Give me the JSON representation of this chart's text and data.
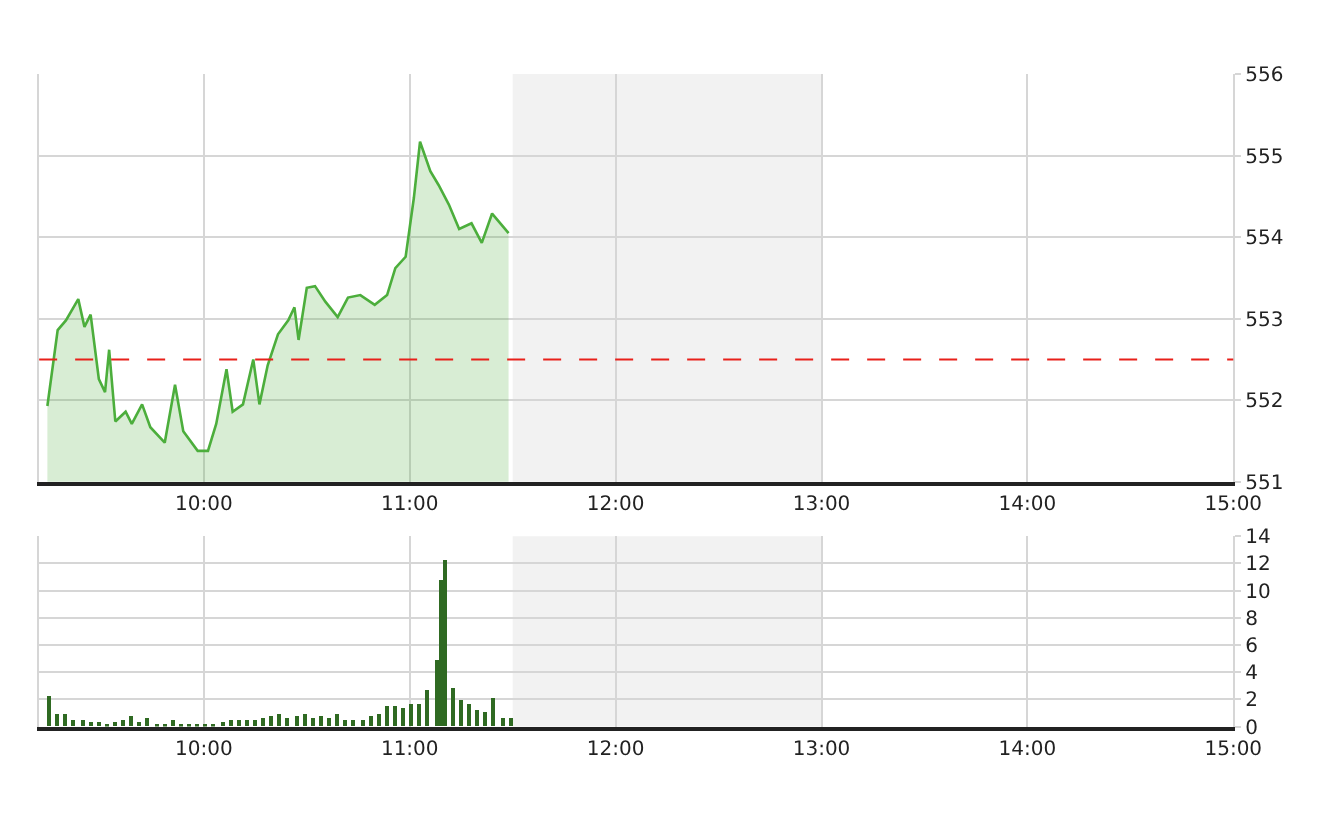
{
  "chart_data": [
    {
      "type": "area",
      "x": [
        9.24,
        9.29,
        9.33,
        9.39,
        9.42,
        9.45,
        9.49,
        9.52,
        9.54,
        9.57,
        9.62,
        9.65,
        9.7,
        9.74,
        9.81,
        9.86,
        9.9,
        9.97,
        10.02,
        10.06,
        10.11,
        10.14,
        10.19,
        10.24,
        10.27,
        10.31,
        10.36,
        10.41,
        10.44,
        10.46,
        10.5,
        10.54,
        10.59,
        10.65,
        10.7,
        10.76,
        10.83,
        10.89,
        10.93,
        10.98,
        11.02,
        11.05,
        11.1,
        11.14,
        11.19,
        11.24,
        11.3,
        11.35,
        11.4,
        11.48
      ],
      "series": [
        {
          "color": "#4cae3c",
          "values": [
            551.93,
            552.86,
            552.98,
            553.24,
            552.9,
            553.05,
            552.26,
            552.1,
            552.62,
            551.74,
            551.86,
            551.71,
            551.95,
            551.67,
            551.48,
            552.19,
            551.62,
            551.38,
            551.38,
            551.71,
            552.38,
            551.86,
            551.95,
            552.5,
            551.95,
            552.43,
            552.81,
            552.98,
            553.14,
            552.74,
            553.38,
            553.4,
            553.21,
            553.02,
            553.26,
            553.29,
            553.17,
            553.29,
            553.62,
            553.76,
            554.48,
            555.17,
            554.81,
            554.64,
            554.4,
            554.1,
            554.17,
            553.93,
            554.29,
            554.05
          ]
        }
      ],
      "xlim": [
        9.2,
        15
      ],
      "xticks": [
        {
          "value": 10,
          "label": "10:00"
        },
        {
          "value": 11,
          "label": "11:00"
        },
        {
          "value": 12,
          "label": "12:00"
        },
        {
          "value": 13,
          "label": "13:00"
        },
        {
          "value": 14,
          "label": "14:00"
        },
        {
          "value": 15,
          "label": "15:00"
        }
      ],
      "ylim": [
        551,
        556
      ],
      "yticks": [
        551,
        552,
        553,
        554,
        555,
        556
      ],
      "ref_lines": [
        {
          "axis": "y",
          "value": 552.5,
          "color": "#e8201a",
          "line_style": "dashed"
        }
      ],
      "bands": [
        {
          "axis": "x",
          "from": 11.5,
          "to": 13,
          "color": "#f2f2f2"
        }
      ],
      "grid": true
    },
    {
      "type": "bar",
      "x": [
        9.25,
        9.29,
        9.33,
        9.37,
        9.41,
        9.45,
        9.49,
        9.53,
        9.57,
        9.61,
        9.65,
        9.69,
        9.73,
        9.77,
        9.81,
        9.85,
        9.89,
        9.93,
        9.97,
        10.01,
        10.05,
        10.09,
        10.13,
        10.17,
        10.21,
        10.25,
        10.29,
        10.33,
        10.37,
        10.41,
        10.45,
        10.49,
        10.53,
        10.57,
        10.61,
        10.65,
        10.69,
        10.73,
        10.77,
        10.81,
        10.85,
        10.89,
        10.93,
        10.97,
        11.01,
        11.05,
        11.09,
        11.13,
        11.15,
        11.17,
        11.21,
        11.25,
        11.29,
        11.33,
        11.37,
        11.41,
        11.45,
        11.49
      ],
      "values": [
        2.2,
        0.9,
        0.9,
        0.4,
        0.4,
        0.3,
        0.3,
        0.2,
        0.3,
        0.5,
        0.8,
        0.3,
        0.6,
        0.2,
        0.2,
        0.4,
        0.1,
        0.1,
        0.1,
        0.1,
        0.2,
        0.3,
        0.4,
        0.5,
        0.4,
        0.4,
        0.6,
        0.8,
        0.9,
        0.6,
        0.8,
        0.9,
        0.6,
        0.8,
        0.6,
        0.9,
        0.5,
        0.4,
        0.5,
        0.7,
        0.9,
        1.5,
        1.5,
        1.3,
        1.6,
        1.7,
        2.6,
        4.9,
        10.7,
        12.2,
        2.8,
        1.9,
        1.7,
        1.2,
        1.0,
        2.1,
        0.6,
        0.6
      ],
      "color": "#2f6a22",
      "xlim": [
        9.2,
        15
      ],
      "xticks": [
        {
          "value": 10,
          "label": "10:00"
        },
        {
          "value": 11,
          "label": "11:00"
        },
        {
          "value": 12,
          "label": "12:00"
        },
        {
          "value": 13,
          "label": "13:00"
        },
        {
          "value": 14,
          "label": "14:00"
        },
        {
          "value": 15,
          "label": "15:00"
        }
      ],
      "ylim": [
        0,
        14
      ],
      "yticks": [
        0,
        2,
        4,
        6,
        8,
        10,
        12,
        14
      ],
      "bands": [
        {
          "axis": "x",
          "from": 11.5,
          "to": 13,
          "color": "#f2f2f2"
        }
      ],
      "grid": true
    }
  ]
}
